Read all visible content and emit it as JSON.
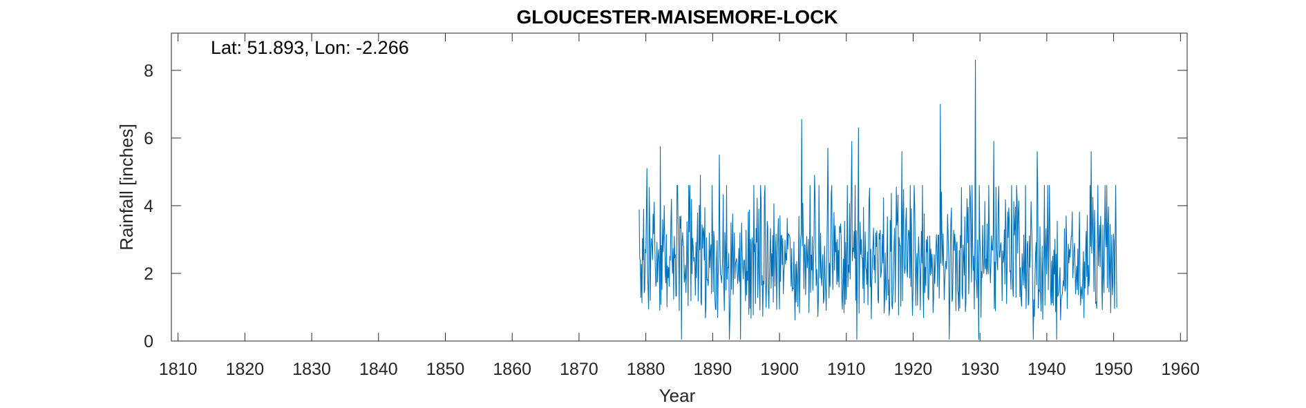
{
  "chart_data": {
    "type": "line",
    "title": "GLOUCESTER-MAISEMORE-LOCK",
    "annotation": "Lat: 51.893, Lon: -2.266",
    "xlabel": "Year",
    "ylabel": "Rainfall [inches]",
    "xlim": [
      1809,
      1961
    ],
    "ylim": [
      0,
      9.1
    ],
    "xticks": [
      1810,
      1820,
      1830,
      1840,
      1850,
      1860,
      1870,
      1880,
      1890,
      1900,
      1910,
      1920,
      1930,
      1940,
      1950,
      1960
    ],
    "yticks": [
      0,
      2,
      4,
      6,
      8
    ],
    "grid": false,
    "series_color": "#0072BD",
    "series": [
      {
        "start_year": 1879.0,
        "end_year": 1950.5,
        "step_years": 0.0833,
        "mean": 2.1,
        "min": 0.0,
        "max": 8.3,
        "peaks": [
          {
            "x": 1880.2,
            "y": 5.1
          },
          {
            "x": 1882.2,
            "y": 5.75
          },
          {
            "x": 1888.2,
            "y": 4.9
          },
          {
            "x": 1891.0,
            "y": 5.5
          },
          {
            "x": 1903.3,
            "y": 6.55
          },
          {
            "x": 1905.2,
            "y": 4.9
          },
          {
            "x": 1907.2,
            "y": 5.7
          },
          {
            "x": 1910.8,
            "y": 5.9
          },
          {
            "x": 1911.8,
            "y": 6.3
          },
          {
            "x": 1918.3,
            "y": 5.6
          },
          {
            "x": 1924.1,
            "y": 7.0
          },
          {
            "x": 1929.3,
            "y": 8.3
          },
          {
            "x": 1932.1,
            "y": 5.9
          },
          {
            "x": 1938.6,
            "y": 5.6
          },
          {
            "x": 1946.6,
            "y": 5.6
          },
          {
            "x": 1950.3,
            "y": 4.6
          }
        ]
      }
    ]
  }
}
